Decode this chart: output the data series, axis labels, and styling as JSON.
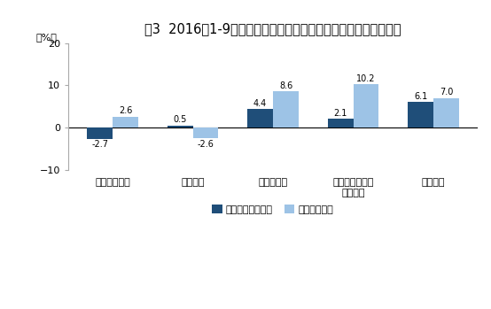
{
  "title": "图3  2016年1-9月份分经济类型主营业务收入与利润总额同比增速",
  "ylabel": "（%）",
  "categories": [
    "国有控股企业",
    "集体企业",
    "股份制企业",
    "外商及港澳台商\n投资企业",
    "私营企业"
  ],
  "series1_label": "主营业务收入增速",
  "series2_label": "利润总额增速",
  "series1_values": [
    -2.7,
    0.5,
    4.4,
    2.1,
    6.1
  ],
  "series2_values": [
    2.6,
    -2.6,
    8.6,
    10.2,
    7.0
  ],
  "series1_color": "#1F4E79",
  "series2_color": "#9DC3E6",
  "ylim": [
    -10,
    20
  ],
  "yticks": [
    -10,
    0,
    10,
    20
  ],
  "background_color": "#FFFFFF",
  "plot_bg_color": "#FFFFFF",
  "bar_width": 0.32,
  "title_fontsize": 10.5,
  "label_fontsize": 8,
  "tick_fontsize": 8,
  "legend_fontsize": 8,
  "value_fontsize": 7
}
